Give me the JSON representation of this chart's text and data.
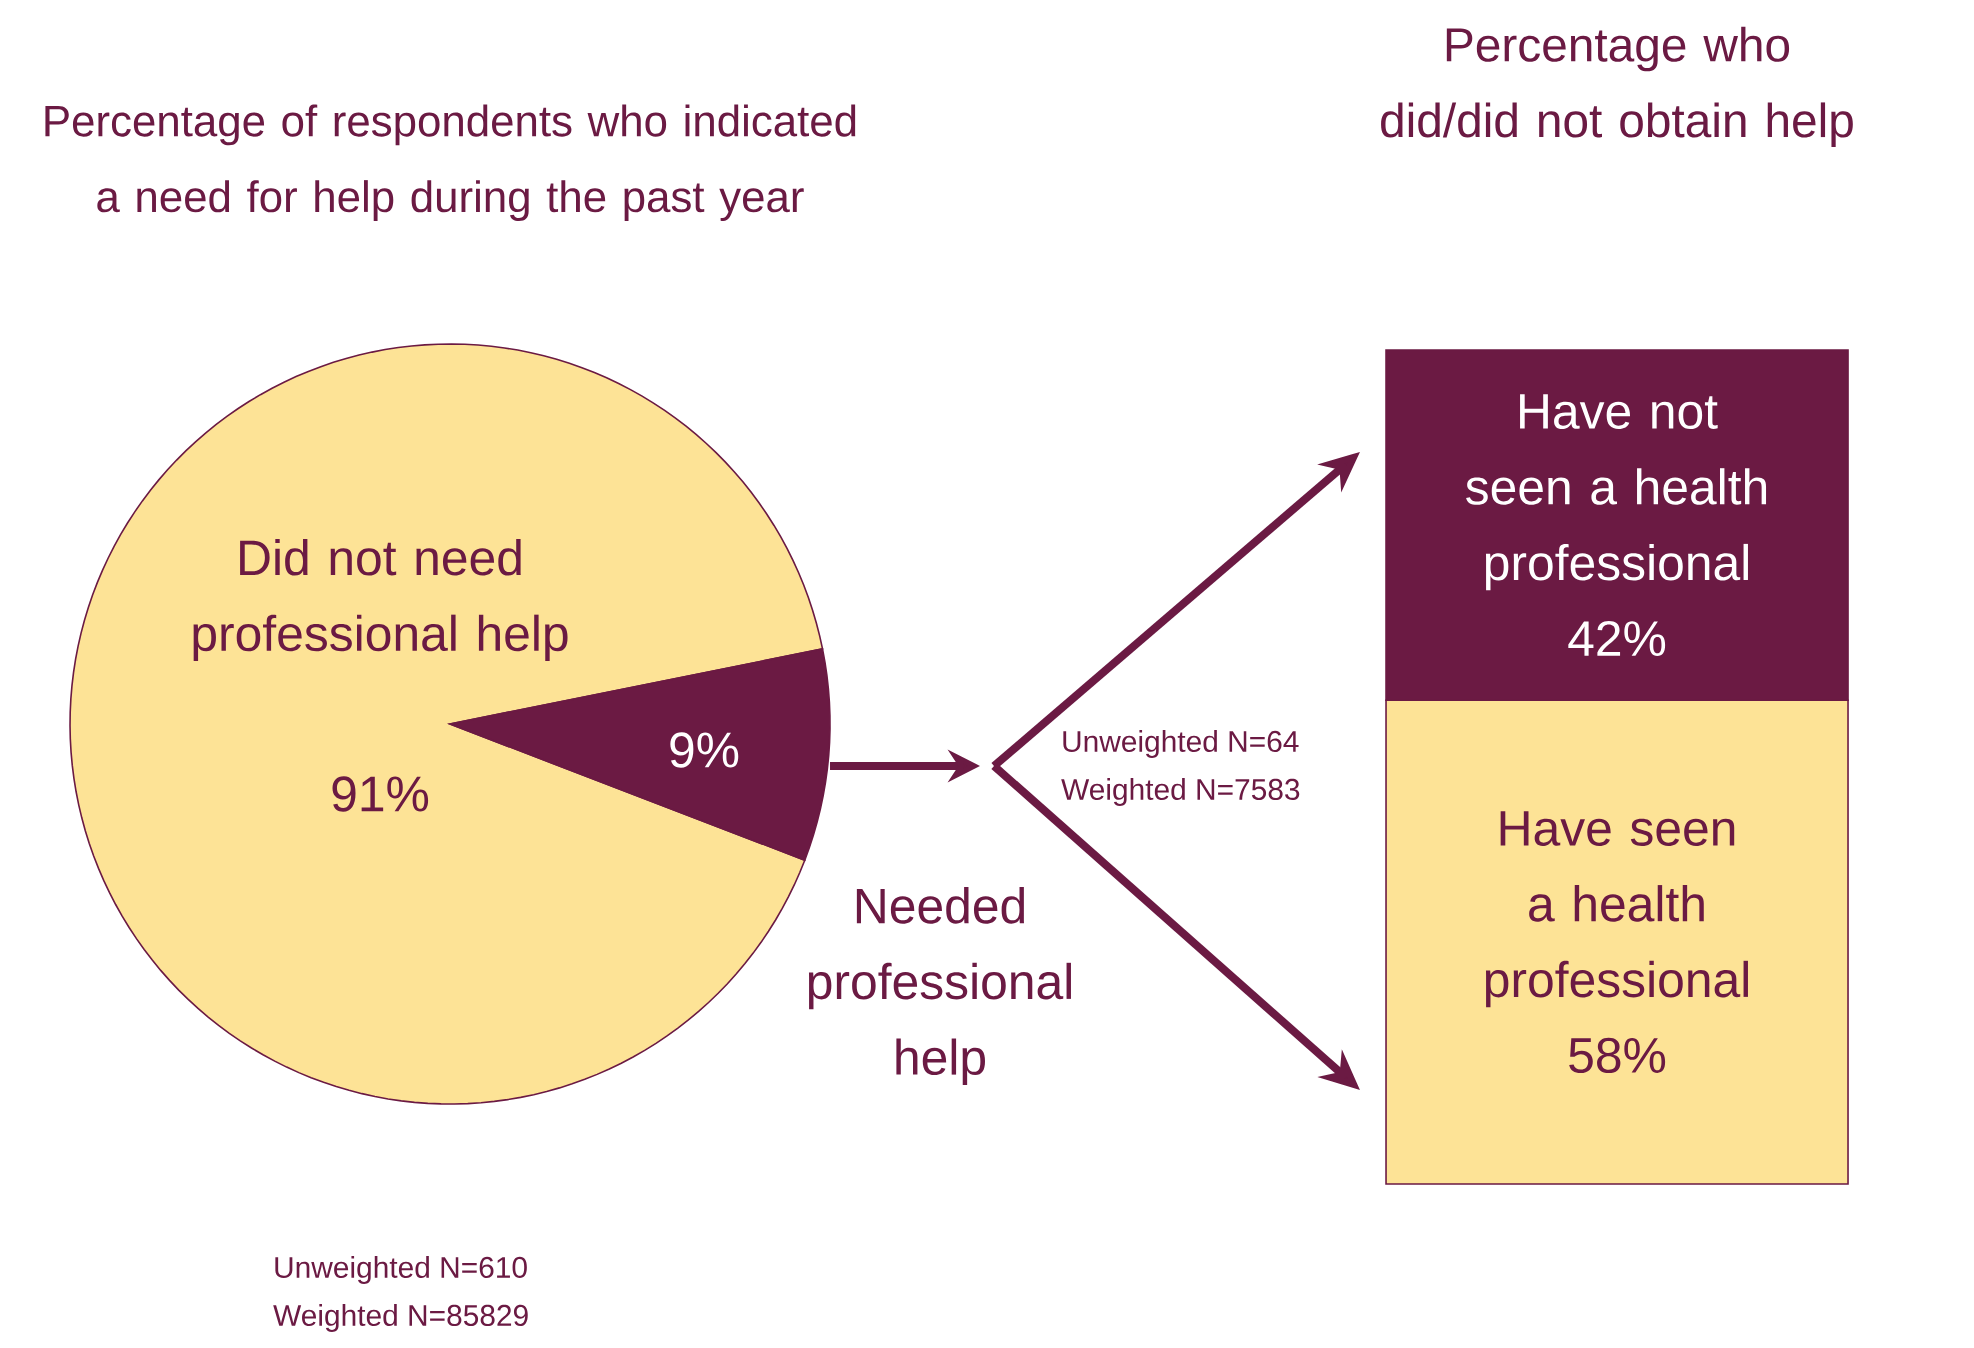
{
  "chart_data": [
    {
      "type": "pie",
      "title": "Percentage of respondents who indicated a need for help during the past year",
      "categories": [
        "Did not need professional help",
        "Needed professional help"
      ],
      "values": [
        91,
        9
      ],
      "colors": [
        "#fde396",
        "#6b1a43"
      ],
      "value_labels": [
        "91%",
        "9%"
      ],
      "annotations": [
        "Unweighted N=610",
        "Weighted N=85829"
      ]
    },
    {
      "type": "bar",
      "title": "Percentage who did/did not obtain help",
      "categories": [
        null
      ],
      "stacked": true,
      "series": [
        {
          "name": "Have seen a health professional",
          "color": "#fde396",
          "values": [
            58
          ],
          "value_labels": [
            "58%"
          ]
        },
        {
          "name": "Have not seen a health professional",
          "color": "#6b1a43",
          "values": [
            42
          ],
          "value_labels": [
            "42%"
          ]
        }
      ],
      "annotations": [
        "Unweighted N=64",
        "Weighted N=7583"
      ]
    }
  ]
}
